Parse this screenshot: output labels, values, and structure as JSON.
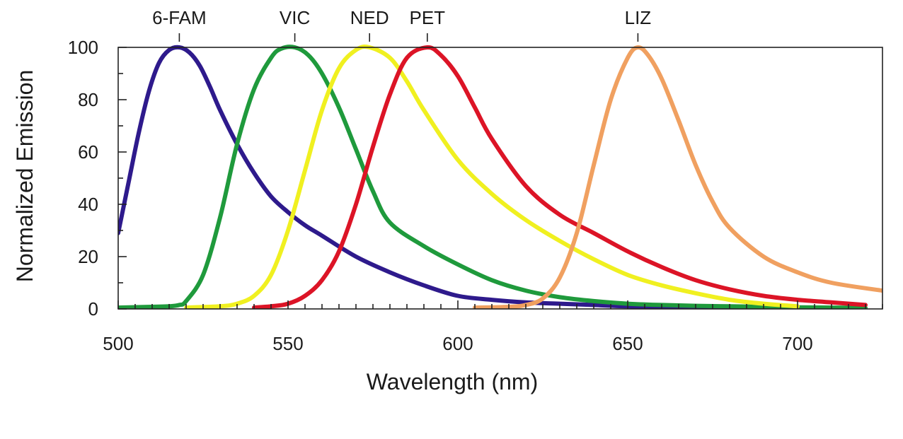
{
  "chart_data": {
    "type": "line",
    "xlabel": "Wavelength (nm)",
    "ylabel": "Normalized Emission",
    "xlim": [
      500,
      725
    ],
    "ylim": [
      0,
      100
    ],
    "x_ticks": [
      500,
      550,
      600,
      650,
      700
    ],
    "y_ticks": [
      0,
      20,
      40,
      60,
      80,
      100
    ],
    "x_minor_step": 5,
    "y_minor_step": 10,
    "grid": false,
    "series": [
      {
        "name": "6-FAM",
        "color": "#2e1a8c",
        "peak": 518,
        "x": [
          500,
          503,
          506,
          509,
          512,
          515,
          518,
          521,
          524,
          527,
          530,
          535,
          540,
          545,
          550,
          555,
          560,
          570,
          580,
          590,
          600,
          610,
          620,
          630,
          640,
          650,
          660,
          670,
          680,
          690,
          700,
          710,
          720
        ],
        "y": [
          29,
          48,
          67,
          83,
          94,
          99,
          100,
          98,
          93,
          85,
          76,
          63,
          52,
          43,
          37,
          32,
          28,
          20,
          14,
          9,
          5,
          3.5,
          2.5,
          2,
          1.5,
          1,
          0.8,
          0.6,
          0.5,
          0.4,
          0.3,
          0.3,
          0.2
        ]
      },
      {
        "name": "VIC",
        "color": "#1f9a3c",
        "peak": 552,
        "x": [
          500,
          510,
          515,
          518,
          520,
          525,
          530,
          535,
          540,
          545,
          548,
          552,
          556,
          560,
          565,
          570,
          575,
          580,
          590,
          600,
          610,
          620,
          630,
          640,
          650,
          660,
          670,
          680,
          690,
          700,
          710,
          720
        ],
        "y": [
          0.5,
          0.8,
          1,
          1.5,
          3,
          13,
          35,
          63,
          84,
          96,
          99.5,
          100,
          97,
          90,
          77,
          61,
          45,
          33,
          24,
          17,
          11,
          7,
          4.5,
          3,
          2,
          1.5,
          1.2,
          1,
          0.8,
          0.6,
          0.5,
          0.4
        ]
      },
      {
        "name": "NED",
        "color": "#f0f020",
        "peak": 574,
        "x": [
          520,
          530,
          535,
          540,
          545,
          550,
          555,
          560,
          565,
          570,
          574,
          580,
          585,
          590,
          600,
          610,
          620,
          630,
          640,
          650,
          660,
          670,
          680,
          690,
          700
        ],
        "y": [
          0.5,
          1,
          2,
          5,
          13,
          30,
          53,
          76,
          92,
          99,
          100,
          96,
          87,
          76,
          57,
          44,
          34,
          26,
          19,
          13,
          9,
          6,
          3.5,
          2,
          1
        ]
      },
      {
        "name": "PET",
        "color": "#dc1426",
        "peak": 591,
        "x": [
          540,
          545,
          550,
          555,
          560,
          565,
          570,
          575,
          580,
          585,
          591,
          595,
          600,
          605,
          610,
          620,
          630,
          640,
          650,
          660,
          670,
          680,
          690,
          700,
          710,
          720
        ],
        "y": [
          0.5,
          1,
          2,
          5,
          11,
          22,
          40,
          62,
          82,
          96,
          100,
          97,
          89,
          77,
          65,
          47,
          36,
          29,
          22,
          16,
          11,
          7.5,
          5,
          3.5,
          2.5,
          1.5
        ]
      },
      {
        "name": "LIZ",
        "color": "#f0a060",
        "peak": 653,
        "x": [
          605,
          615,
          620,
          625,
          630,
          635,
          640,
          645,
          650,
          653,
          656,
          660,
          665,
          670,
          675,
          680,
          690,
          700,
          710,
          725
        ],
        "y": [
          0.5,
          0.8,
          1.5,
          4,
          12,
          29,
          55,
          80,
          96,
          100,
          97,
          88,
          72,
          55,
          41,
          31,
          20,
          14,
          10,
          7
        ]
      }
    ]
  }
}
